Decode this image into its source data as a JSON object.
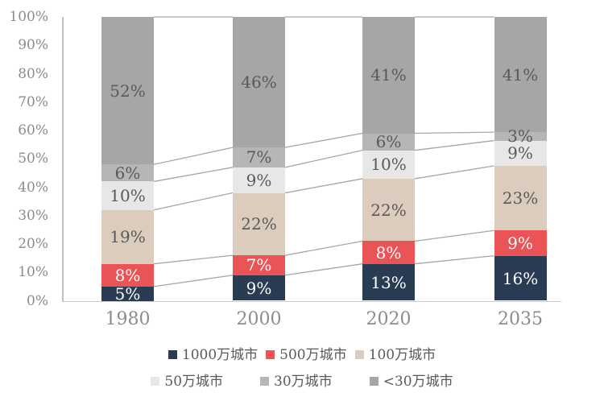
{
  "chart_data": {
    "type": "bar",
    "variant": "stacked-100-percent",
    "title": "",
    "categories": [
      "1980",
      "2000",
      "2020",
      "2035"
    ],
    "series": [
      {
        "name": "1000万城市",
        "color": "#2a3c54",
        "label_color": "#ffffff",
        "values": [
          5,
          9,
          13,
          16
        ],
        "labels": [
          "5%",
          "9%",
          "13%",
          "16%"
        ]
      },
      {
        "name": "500万城市",
        "color": "#eb5457",
        "label_color": "#ffffff",
        "values": [
          8,
          7,
          8,
          9
        ],
        "labels": [
          "8%",
          "7%",
          "8%",
          "9%"
        ]
      },
      {
        "name": "100万城市",
        "color": "#dcccbe",
        "label_color": "#595959",
        "values": [
          19,
          22,
          22,
          23
        ],
        "labels": [
          "19%",
          "22%",
          "22%",
          "23%"
        ]
      },
      {
        "name": "50万城市",
        "color": "#e8e7e7",
        "label_color": "#595959",
        "values": [
          10,
          9,
          10,
          9
        ],
        "labels": [
          "10%",
          "9%",
          "10%",
          "9%"
        ]
      },
      {
        "name": "30万城市",
        "color": "#b7b6b6",
        "label_color": "#595959",
        "values": [
          6,
          7,
          6,
          3
        ],
        "labels": [
          "6%",
          "7%",
          "6%",
          "3%"
        ]
      },
      {
        "name": "<30万城市",
        "color": "#a7a6a6",
        "label_color": "#595959",
        "values": [
          52,
          46,
          41,
          41
        ],
        "labels": [
          "52%",
          "46%",
          "41%",
          "41%"
        ]
      }
    ],
    "y_ticks": [
      "0%",
      "10%",
      "20%",
      "30%",
      "40%",
      "50%",
      "60%",
      "70%",
      "80%",
      "90%",
      "100%"
    ],
    "ylim": [
      0,
      100
    ],
    "grid": false,
    "legend_position": "bottom",
    "legend_rows": [
      [
        0,
        1,
        2
      ],
      [
        3,
        4,
        5
      ]
    ],
    "connector_lines": true,
    "colors": {
      "axis_line": "#bfbfbf",
      "baseline": "#c9c9c9",
      "connector": "#a6a6a6",
      "tick_text": "#8c8c8c",
      "category_text": "#8c8c8c",
      "legend_text": "#595959",
      "background": "#ffffff"
    }
  }
}
